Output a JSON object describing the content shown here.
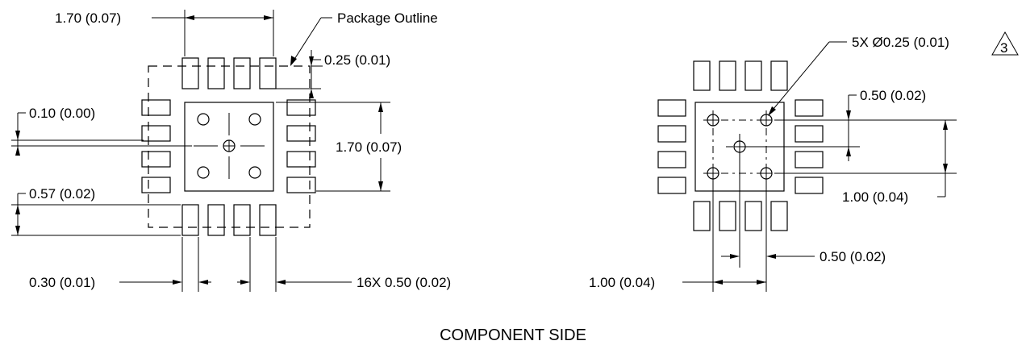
{
  "left_view": {
    "dim_top_width": "1.70 (0.07)",
    "package_outline": "Package Outline",
    "dim_outline_offset": "0.25 (0.01)",
    "dim_height": "1.70 (0.07)",
    "dim_small_offset": "0.10 (0.00)",
    "dim_bottom_offset": "0.57 (0.02)",
    "dim_pad_width": "0.30 (0.01)",
    "dim_pitch": "16X 0.50 (0.02)"
  },
  "right_view": {
    "dim_hole": "5X Ø0.25 (0.01)",
    "note_number": "3",
    "dim_vert_small": "0.50 (0.02)",
    "dim_vert_large": "1.00 (0.04)",
    "dim_horiz_small": "0.50 (0.02)",
    "dim_horiz_large": "1.00 (0.04)"
  },
  "caption": "COMPONENT SIDE"
}
